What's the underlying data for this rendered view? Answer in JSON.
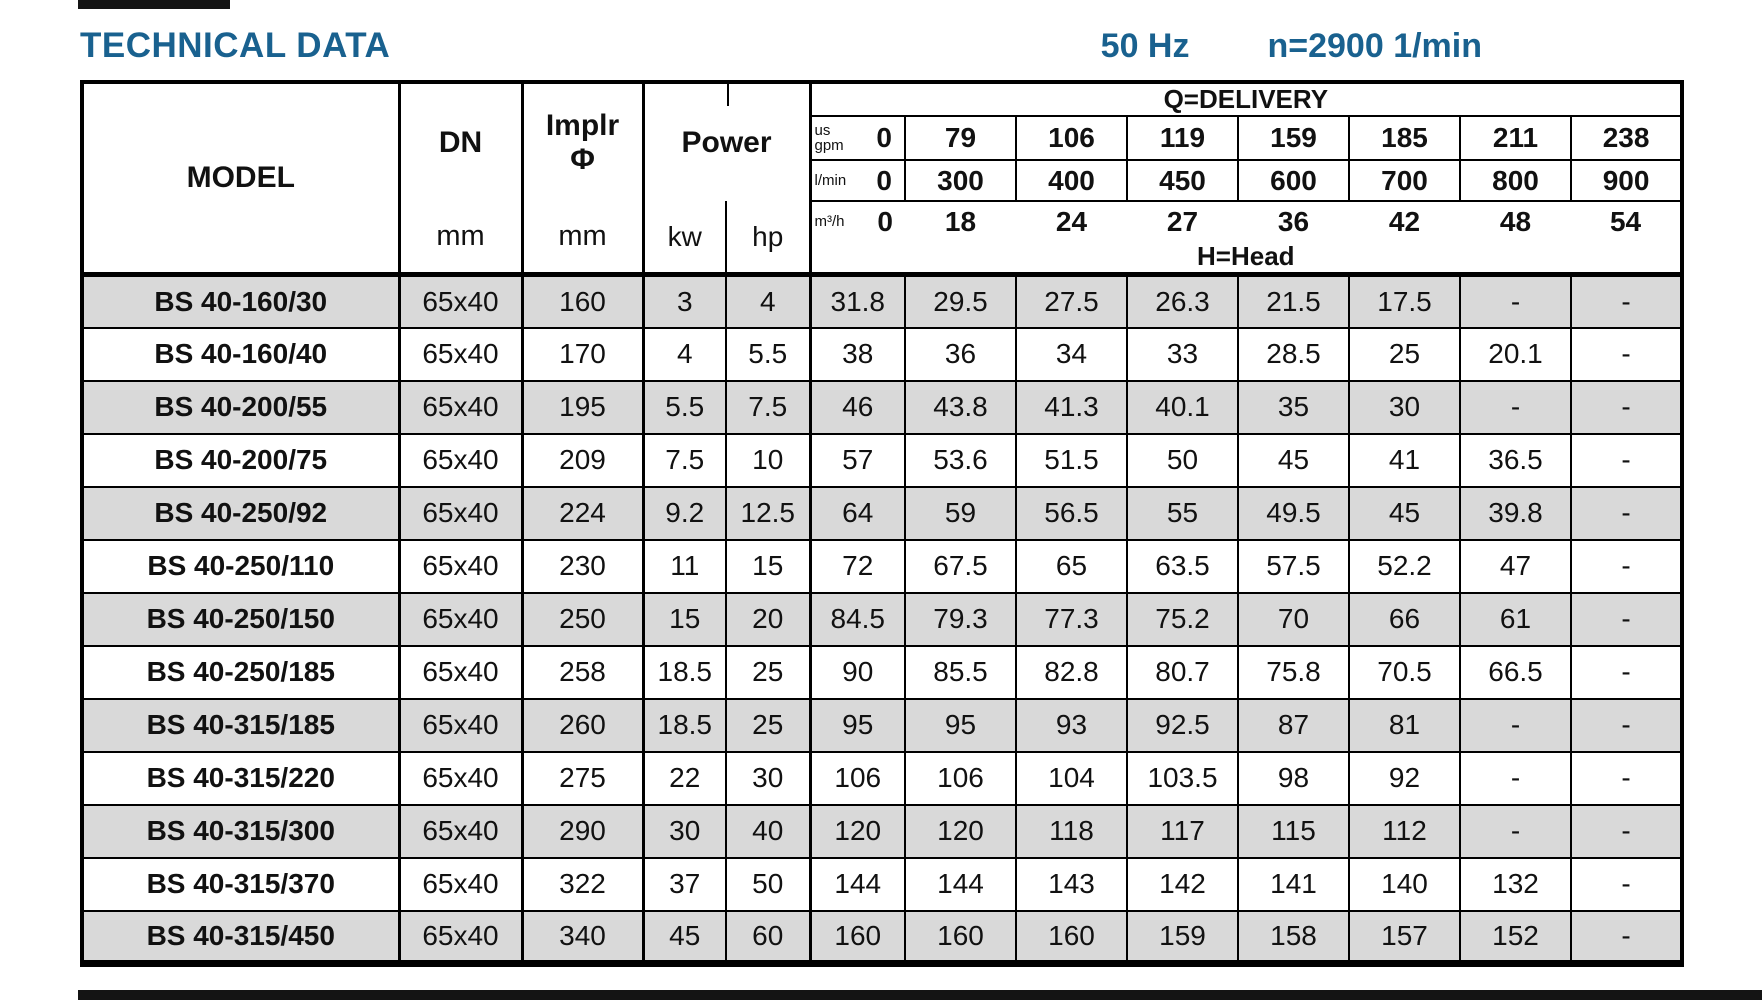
{
  "page": {
    "title": "TECHNICAL DATA",
    "frequency": "50 Hz",
    "speed": "n=2900 1/min"
  },
  "table": {
    "header": {
      "model": "MODEL",
      "dn": "DN",
      "dn_unit": "mm",
      "impeller": "Implr",
      "impeller_symbol": "Φ",
      "impeller_unit": "mm",
      "power": "Power",
      "power_kw": "kw",
      "power_hp": "hp",
      "delivery_title": "Q=DELIVERY",
      "head_label": "H=Head",
      "flow_rows": [
        {
          "unit": "us gpm",
          "zero": "0",
          "values": [
            "79",
            "106",
            "119",
            "159",
            "185",
            "211",
            "238"
          ]
        },
        {
          "unit": "l/min",
          "zero": "0",
          "values": [
            "300",
            "400",
            "450",
            "600",
            "700",
            "800",
            "900"
          ]
        },
        {
          "unit": "m³/h",
          "zero": "0",
          "values": [
            "18",
            "24",
            "27",
            "36",
            "42",
            "48",
            "54"
          ]
        }
      ]
    },
    "rows": [
      {
        "model": "BS 40-160/30",
        "dn": "65x40",
        "impeller": "160",
        "kw": "3",
        "hp": "4",
        "head": [
          "31.8",
          "29.5",
          "27.5",
          "26.3",
          "21.5",
          "17.5",
          "-",
          "-"
        ]
      },
      {
        "model": "BS 40-160/40",
        "dn": "65x40",
        "impeller": "170",
        "kw": "4",
        "hp": "5.5",
        "head": [
          "38",
          "36",
          "34",
          "33",
          "28.5",
          "25",
          "20.1",
          "-"
        ]
      },
      {
        "model": "BS 40-200/55",
        "dn": "65x40",
        "impeller": "195",
        "kw": "5.5",
        "hp": "7.5",
        "head": [
          "46",
          "43.8",
          "41.3",
          "40.1",
          "35",
          "30",
          "-",
          "-"
        ]
      },
      {
        "model": "BS 40-200/75",
        "dn": "65x40",
        "impeller": "209",
        "kw": "7.5",
        "hp": "10",
        "head": [
          "57",
          "53.6",
          "51.5",
          "50",
          "45",
          "41",
          "36.5",
          "-"
        ]
      },
      {
        "model": "BS 40-250/92",
        "dn": "65x40",
        "impeller": "224",
        "kw": "9.2",
        "hp": "12.5",
        "head": [
          "64",
          "59",
          "56.5",
          "55",
          "49.5",
          "45",
          "39.8",
          "-"
        ]
      },
      {
        "model": "BS 40-250/110",
        "dn": "65x40",
        "impeller": "230",
        "kw": "11",
        "hp": "15",
        "head": [
          "72",
          "67.5",
          "65",
          "63.5",
          "57.5",
          "52.2",
          "47",
          "-"
        ]
      },
      {
        "model": "BS 40-250/150",
        "dn": "65x40",
        "impeller": "250",
        "kw": "15",
        "hp": "20",
        "head": [
          "84.5",
          "79.3",
          "77.3",
          "75.2",
          "70",
          "66",
          "61",
          "-"
        ]
      },
      {
        "model": "BS 40-250/185",
        "dn": "65x40",
        "impeller": "258",
        "kw": "18.5",
        "hp": "25",
        "head": [
          "90",
          "85.5",
          "82.8",
          "80.7",
          "75.8",
          "70.5",
          "66.5",
          "-"
        ]
      },
      {
        "model": "BS 40-315/185",
        "dn": "65x40",
        "impeller": "260",
        "kw": "18.5",
        "hp": "25",
        "head": [
          "95",
          "95",
          "93",
          "92.5",
          "87",
          "81",
          "-",
          "-"
        ]
      },
      {
        "model": "BS 40-315/220",
        "dn": "65x40",
        "impeller": "275",
        "kw": "22",
        "hp": "30",
        "head": [
          "106",
          "106",
          "104",
          "103.5",
          "98",
          "92",
          "-",
          "-"
        ]
      },
      {
        "model": "BS 40-315/300",
        "dn": "65x40",
        "impeller": "290",
        "kw": "30",
        "hp": "40",
        "head": [
          "120",
          "120",
          "118",
          "117",
          "115",
          "112",
          "-",
          "-"
        ]
      },
      {
        "model": "BS 40-315/370",
        "dn": "65x40",
        "impeller": "322",
        "kw": "37",
        "hp": "50",
        "head": [
          "144",
          "144",
          "143",
          "142",
          "141",
          "140",
          "132",
          "-"
        ]
      },
      {
        "model": "BS 40-315/450",
        "dn": "65x40",
        "impeller": "340",
        "kw": "45",
        "hp": "60",
        "head": [
          "160",
          "160",
          "160",
          "159",
          "158",
          "157",
          "152",
          "-"
        ]
      }
    ]
  }
}
